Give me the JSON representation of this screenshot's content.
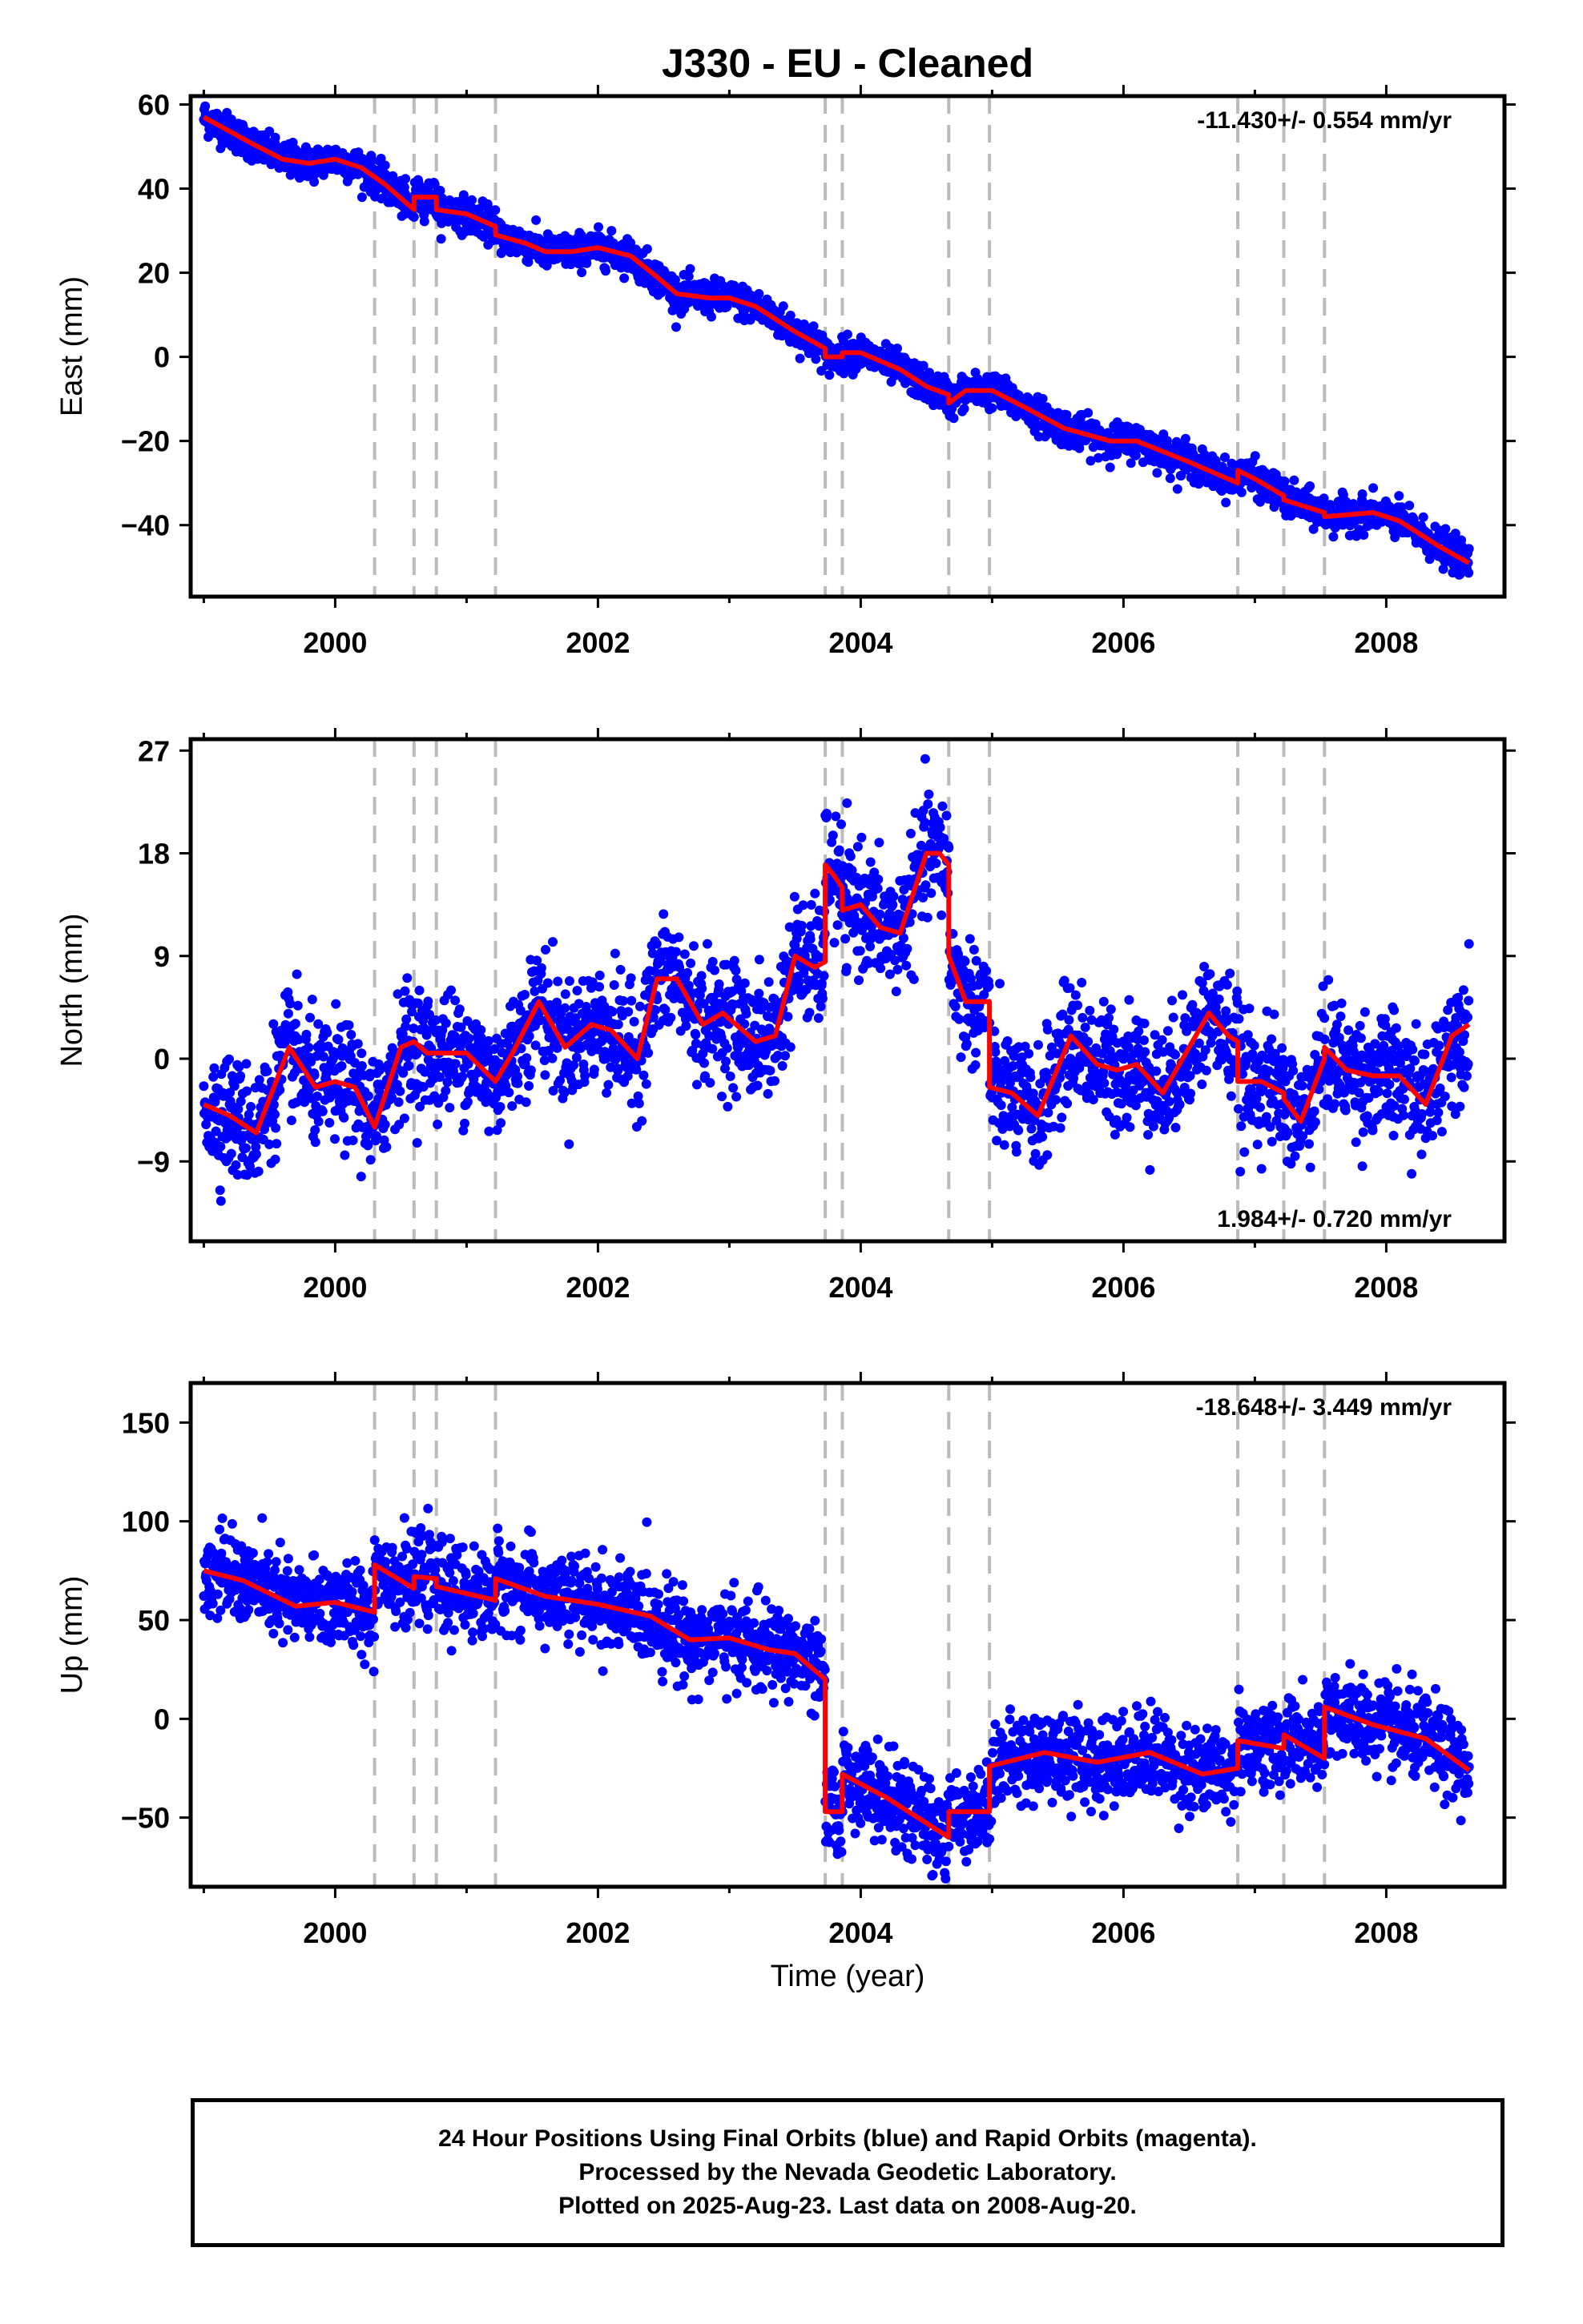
{
  "title": "J330  - EU - Cleaned",
  "xlabel": "Time (year)",
  "colors": {
    "points": "#0000ff",
    "model": "#ff0000",
    "equipment_lines": "#bbbbbb",
    "frame": "#000000"
  },
  "footer": {
    "line1": "24 Hour Positions Using Final Orbits (blue) and Rapid Orbits (magenta).",
    "line2": "Processed by the Nevada Geodetic Laboratory.",
    "line3": "Plotted on 2025-Aug-23. Last data on 2008-Aug-20."
  },
  "chart_data": [
    {
      "type": "scatter",
      "panel": "east",
      "ylabel": "East (mm)",
      "rate_label": "-11.430+/- 0.554 mm/yr",
      "rate_position": "top-right",
      "xlim": [
        1998.9,
        2008.9
      ],
      "ylim": [
        -57,
        62
      ],
      "xticks": [
        2000,
        2002,
        2004,
        2006,
        2008
      ],
      "yticks": [
        -40,
        -20,
        0,
        20,
        40,
        60
      ],
      "vertical_lines": [
        2000.3,
        2000.6,
        2000.77,
        2001.22,
        2003.73,
        2003.86,
        2004.67,
        2004.98,
        2006.87,
        2007.22,
        2007.53
      ],
      "model_curve": {
        "x": [
          1999.0,
          1999.35,
          1999.6,
          1999.8,
          2000.0,
          2000.2,
          2000.38,
          2000.6,
          2000.6,
          2000.77,
          2000.77,
          2001.0,
          2001.22,
          2001.22,
          2001.45,
          2001.6,
          2001.8,
          2002.0,
          2002.25,
          2002.45,
          2002.6,
          2002.85,
          2003.0,
          2003.2,
          2003.5,
          2003.73,
          2003.73,
          2003.86,
          2003.86,
          2004.0,
          2004.3,
          2004.5,
          2004.67,
          2004.67,
          2004.8,
          2005.0,
          2005.25,
          2005.55,
          2005.9,
          2006.1,
          2006.5,
          2006.87,
          2006.87,
          2007.0,
          2007.22,
          2007.22,
          2007.53,
          2007.53,
          2007.9,
          2008.1,
          2008.4,
          2008.63
        ],
        "y": [
          57,
          51,
          47,
          46,
          47,
          45,
          41,
          35,
          38,
          38,
          35,
          34,
          31,
          29,
          27,
          25,
          25,
          26,
          24,
          19,
          15,
          14,
          14,
          12,
          6,
          2,
          0,
          0,
          1,
          1,
          -3,
          -7,
          -9,
          -11,
          -8,
          -8,
          -12,
          -17,
          -20,
          -20,
          -25,
          -30,
          -27,
          -29,
          -33,
          -34,
          -37,
          -38,
          -37,
          -39,
          -45,
          -49
        ]
      },
      "scatter": {
        "count": 2800,
        "noise_sd": 2.0,
        "x_range": [
          1999.0,
          2008.63
        ]
      }
    },
    {
      "type": "scatter",
      "panel": "north",
      "ylabel": "North (mm)",
      "rate_label": "1.984+/- 0.720 mm/yr",
      "rate_position": "bottom-right",
      "xlim": [
        1998.9,
        2008.9
      ],
      "ylim": [
        -16,
        28
      ],
      "xticks": [
        2000,
        2002,
        2004,
        2006,
        2008
      ],
      "yticks": [
        -9,
        0,
        9,
        18,
        27
      ],
      "vertical_lines": [
        2000.3,
        2000.6,
        2000.77,
        2001.22,
        2003.73,
        2003.86,
        2004.67,
        2004.98,
        2006.87,
        2007.22,
        2007.53
      ],
      "model_curve": {
        "x": [
          1999.0,
          1999.2,
          1999.4,
          1999.65,
          1999.85,
          2000.0,
          2000.15,
          2000.3,
          2000.5,
          2000.6,
          2000.7,
          2000.77,
          2001.0,
          2001.22,
          2001.35,
          2001.55,
          2001.75,
          2001.95,
          2002.1,
          2002.3,
          2002.45,
          2002.6,
          2002.8,
          2002.95,
          2003.05,
          2003.2,
          2003.35,
          2003.5,
          2003.65,
          2003.73,
          2003.73,
          2003.8,
          2003.86,
          2003.86,
          2004.0,
          2004.15,
          2004.3,
          2004.5,
          2004.6,
          2004.67,
          2004.67,
          2004.8,
          2004.98,
          2004.98,
          2005.15,
          2005.35,
          2005.6,
          2005.8,
          2005.95,
          2006.1,
          2006.3,
          2006.45,
          2006.65,
          2006.8,
          2006.87,
          2006.87,
          2007.05,
          2007.22,
          2007.22,
          2007.35,
          2007.53,
          2007.53,
          2007.7,
          2007.9,
          2008.1,
          2008.3,
          2008.5,
          2008.63
        ],
        "y": [
          -4,
          -5,
          -6.5,
          1,
          -2.5,
          -2,
          -2.5,
          -6,
          1,
          1.5,
          0.5,
          0.5,
          0.5,
          -2,
          0.5,
          5,
          1,
          3,
          2.5,
          0,
          7,
          7,
          3,
          4,
          3,
          1.5,
          2,
          9,
          8,
          8.5,
          17,
          16,
          15,
          13,
          13.5,
          11.5,
          11,
          18,
          18,
          17,
          9,
          5,
          5,
          -2.5,
          -3,
          -5,
          2,
          -0.5,
          -1,
          -0.5,
          -3,
          0,
          4,
          2,
          1.5,
          -2,
          -2,
          -3,
          -3.5,
          -5.5,
          0,
          1,
          -1,
          -1.5,
          -1.5,
          -4,
          2,
          3
        ]
      },
      "scatter": {
        "count": 2800,
        "noise_sd": 2.6,
        "x_range": [
          1999.0,
          2008.63
        ]
      }
    },
    {
      "type": "scatter",
      "panel": "up",
      "ylabel": "Up (mm)",
      "rate_label": "-18.648+/- 3.449 mm/yr",
      "rate_position": "top-right",
      "xlim": [
        1998.9,
        2008.9
      ],
      "ylim": [
        -85,
        170
      ],
      "xticks": [
        2000,
        2002,
        2004,
        2006,
        2008
      ],
      "yticks": [
        -50,
        0,
        50,
        100,
        150
      ],
      "vertical_lines": [
        2000.3,
        2000.6,
        2000.77,
        2001.22,
        2003.73,
        2003.86,
        2004.67,
        2004.98,
        2006.87,
        2007.22,
        2007.53
      ],
      "model_curve": {
        "x": [
          1999.0,
          1999.3,
          1999.7,
          2000.0,
          2000.3,
          2000.3,
          2000.6,
          2000.6,
          2000.77,
          2000.77,
          2001.22,
          2001.22,
          2001.6,
          2002.0,
          2002.4,
          2002.7,
          2003.0,
          2003.3,
          2003.5,
          2003.73,
          2003.73,
          2003.86,
          2003.86,
          2004.2,
          2004.67,
          2004.67,
          2004.98,
          2004.98,
          2005.4,
          2005.8,
          2006.2,
          2006.6,
          2006.87,
          2006.87,
          2007.22,
          2007.22,
          2007.53,
          2007.53,
          2007.9,
          2008.3,
          2008.63
        ],
        "y": [
          75,
          70,
          57,
          59,
          54,
          78,
          66,
          72,
          71,
          67,
          60,
          71,
          62,
          58,
          52,
          40,
          41,
          35,
          33,
          20,
          -47,
          -47,
          -28,
          -40,
          -60,
          -47,
          -47,
          -24,
          -17,
          -22,
          -17,
          -28,
          -25,
          -11,
          -15,
          -8,
          -20,
          6,
          -3,
          -10,
          -26
        ]
      },
      "scatter": {
        "count": 2800,
        "noise_sd": 11.0,
        "x_range": [
          1999.0,
          2008.63
        ]
      }
    }
  ]
}
